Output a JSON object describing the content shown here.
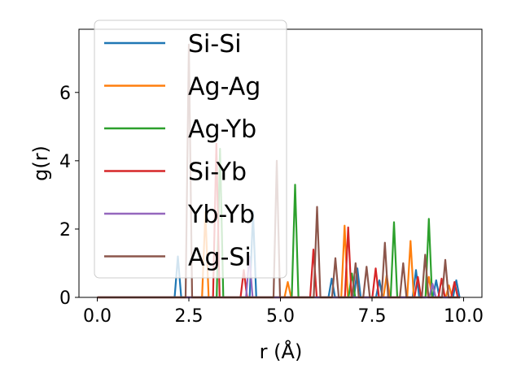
{
  "chart_data": {
    "type": "line",
    "xlabel": "r (Å)",
    "ylabel": "g(r)",
    "xlim": [
      -0.5,
      10.5
    ],
    "ylim": [
      0,
      7.85
    ],
    "xticks": [
      "0.0",
      "2.5",
      "5.0",
      "7.5",
      "10.0"
    ],
    "xtick_values": [
      0,
      2.5,
      5,
      7.5,
      10
    ],
    "yticks": [
      "0",
      "2",
      "4",
      "6"
    ],
    "ytick_values": [
      0,
      2,
      4,
      6
    ],
    "grid": false,
    "legend_position": "upper-left",
    "baseline_x_range": [
      0,
      9.9
    ],
    "series": [
      {
        "name": "Si-Si",
        "color": "#1f77b4",
        "peaks": [
          [
            2.2,
            1.2
          ],
          [
            4.25,
            2.5
          ],
          [
            6.4,
            0.55
          ],
          [
            7.1,
            0.85
          ],
          [
            7.7,
            0.5
          ],
          [
            8.7,
            0.8
          ],
          [
            9.25,
            0.5
          ],
          [
            9.8,
            0.5
          ]
        ]
      },
      {
        "name": "Ag-Ag",
        "color": "#ff7f0e",
        "peaks": [
          [
            2.95,
            2.5
          ],
          [
            5.2,
            0.45
          ],
          [
            6.75,
            2.1
          ],
          [
            7.9,
            0.65
          ],
          [
            8.55,
            1.65
          ],
          [
            9.05,
            0.6
          ],
          [
            9.6,
            0.35
          ]
        ]
      },
      {
        "name": "Ag-Yb",
        "color": "#2ca02c",
        "peaks": [
          [
            3.35,
            4.35
          ],
          [
            5.4,
            3.3
          ],
          [
            6.95,
            0.7
          ],
          [
            8.1,
            2.2
          ],
          [
            9.05,
            2.3
          ]
        ]
      },
      {
        "name": "Si-Yb",
        "color": "#d62728",
        "peaks": [
          [
            3.25,
            4.5
          ],
          [
            4.0,
            0.8
          ],
          [
            5.9,
            1.4
          ],
          [
            6.85,
            2.05
          ],
          [
            7.6,
            0.85
          ],
          [
            8.75,
            0.6
          ],
          [
            9.4,
            0.55
          ],
          [
            9.75,
            0.45
          ]
        ]
      },
      {
        "name": "Yb-Yb",
        "color": "#9467bd",
        "peaks": [
          [
            4.15,
            1.2
          ],
          [
            9.15,
            0.4
          ]
        ]
      },
      {
        "name": "Ag-Si",
        "color": "#8c564b",
        "peaks": [
          [
            2.5,
            7.4
          ],
          [
            4.9,
            4.0
          ],
          [
            6.0,
            2.65
          ],
          [
            6.5,
            1.15
          ],
          [
            7.05,
            1.0
          ],
          [
            7.35,
            0.9
          ],
          [
            7.85,
            1.6
          ],
          [
            8.35,
            1.0
          ],
          [
            8.95,
            1.25
          ],
          [
            9.5,
            1.1
          ]
        ]
      }
    ]
  }
}
